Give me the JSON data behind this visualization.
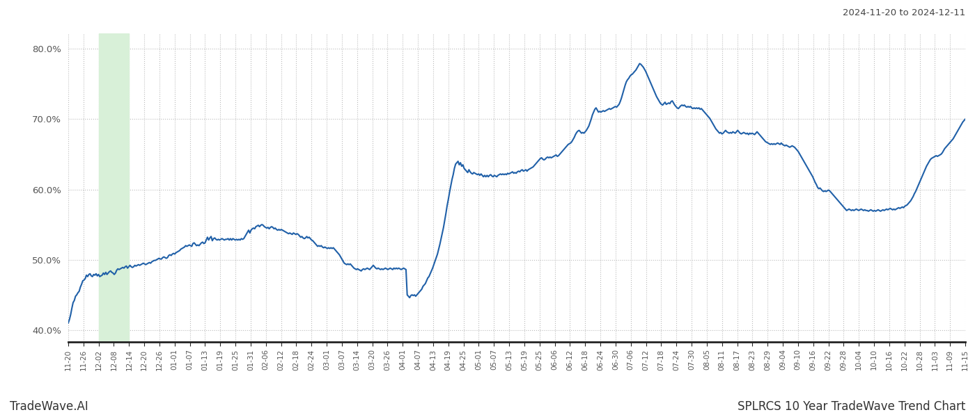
{
  "title_right": "2024-11-20 to 2024-12-11",
  "footer_left": "TradeWave.AI",
  "footer_right": "SPLRCS 10 Year TradeWave Trend Chart",
  "ylim": [
    0.383,
    0.822
  ],
  "yticks": [
    0.4,
    0.5,
    0.6,
    0.7,
    0.8
  ],
  "line_color": "#2060a8",
  "line_width": 1.5,
  "highlight_color": "#d8f0d8",
  "highlight_xstart_label": "12-02",
  "highlight_xend_label": "12-14",
  "background_color": "#ffffff",
  "grid_color": "#bbbbbb",
  "grid_style": ":",
  "x_labels": [
    "11-20",
    "11-26",
    "12-02",
    "12-08",
    "12-14",
    "12-20",
    "12-26",
    "01-01",
    "01-07",
    "01-13",
    "01-19",
    "01-25",
    "01-31",
    "02-06",
    "02-12",
    "02-18",
    "02-24",
    "03-01",
    "03-07",
    "03-14",
    "03-20",
    "03-26",
    "04-01",
    "04-07",
    "04-13",
    "04-19",
    "04-25",
    "05-01",
    "05-07",
    "05-13",
    "05-19",
    "05-25",
    "06-06",
    "06-12",
    "06-18",
    "06-24",
    "06-30",
    "07-06",
    "07-12",
    "07-18",
    "07-24",
    "07-30",
    "08-05",
    "08-11",
    "08-17",
    "08-23",
    "08-29",
    "09-04",
    "09-10",
    "09-16",
    "09-22",
    "09-28",
    "10-04",
    "10-10",
    "10-16",
    "10-22",
    "10-28",
    "11-03",
    "11-09",
    "11-15"
  ],
  "y_values": [
    0.41,
    0.415,
    0.422,
    0.431,
    0.439,
    0.442,
    0.448,
    0.45,
    0.453,
    0.455,
    0.461,
    0.465,
    0.47,
    0.471,
    0.473,
    0.478,
    0.476,
    0.479,
    0.48,
    0.477,
    0.476,
    0.479,
    0.478,
    0.48,
    0.477,
    0.479,
    0.476,
    0.477,
    0.478,
    0.481,
    0.479,
    0.482,
    0.479,
    0.481,
    0.483,
    0.484,
    0.482,
    0.481,
    0.479,
    0.481,
    0.485,
    0.487,
    0.486,
    0.487,
    0.488,
    0.489,
    0.488,
    0.49,
    0.491,
    0.488,
    0.49,
    0.492,
    0.49,
    0.489,
    0.49,
    0.492,
    0.491,
    0.492,
    0.493,
    0.492,
    0.493,
    0.494,
    0.495,
    0.494,
    0.493,
    0.494,
    0.495,
    0.496,
    0.495,
    0.497,
    0.498,
    0.499,
    0.499,
    0.5,
    0.501,
    0.502,
    0.501,
    0.501,
    0.503,
    0.504,
    0.503,
    0.502,
    0.503,
    0.506,
    0.507,
    0.506,
    0.508,
    0.509,
    0.508,
    0.51,
    0.511,
    0.512,
    0.513,
    0.515,
    0.516,
    0.517,
    0.518,
    0.52,
    0.519,
    0.52,
    0.521,
    0.52,
    0.519,
    0.523,
    0.524,
    0.522,
    0.52,
    0.521,
    0.52,
    0.522,
    0.524,
    0.525,
    0.523,
    0.524,
    0.528,
    0.532,
    0.528,
    0.531,
    0.533,
    0.527,
    0.53,
    0.531,
    0.529,
    0.528,
    0.529,
    0.528,
    0.529,
    0.53,
    0.529,
    0.528,
    0.529,
    0.529,
    0.53,
    0.528,
    0.53,
    0.528,
    0.53,
    0.529,
    0.528,
    0.529,
    0.528,
    0.529,
    0.528,
    0.53,
    0.529,
    0.53,
    0.533,
    0.536,
    0.539,
    0.542,
    0.538,
    0.542,
    0.544,
    0.545,
    0.544,
    0.547,
    0.548,
    0.549,
    0.547,
    0.549,
    0.55,
    0.549,
    0.547,
    0.546,
    0.545,
    0.546,
    0.544,
    0.546,
    0.547,
    0.546,
    0.544,
    0.545,
    0.543,
    0.542,
    0.543,
    0.542,
    0.543,
    0.542,
    0.541,
    0.54,
    0.539,
    0.538,
    0.537,
    0.538,
    0.537,
    0.536,
    0.538,
    0.537,
    0.536,
    0.537,
    0.536,
    0.534,
    0.532,
    0.533,
    0.531,
    0.53,
    0.531,
    0.533,
    0.531,
    0.532,
    0.53,
    0.528,
    0.527,
    0.525,
    0.523,
    0.521,
    0.519,
    0.52,
    0.519,
    0.52,
    0.518,
    0.517,
    0.518,
    0.517,
    0.516,
    0.517,
    0.516,
    0.517,
    0.516,
    0.517,
    0.515,
    0.513,
    0.511,
    0.509,
    0.507,
    0.504,
    0.501,
    0.498,
    0.495,
    0.494,
    0.493,
    0.494,
    0.493,
    0.494,
    0.492,
    0.49,
    0.488,
    0.487,
    0.486,
    0.487,
    0.486,
    0.485,
    0.484,
    0.486,
    0.487,
    0.486,
    0.487,
    0.488,
    0.487,
    0.486,
    0.488,
    0.49,
    0.492,
    0.49,
    0.488,
    0.487,
    0.488,
    0.487,
    0.486,
    0.487,
    0.486,
    0.487,
    0.488,
    0.487,
    0.486,
    0.487,
    0.488,
    0.487,
    0.486,
    0.488,
    0.487,
    0.488,
    0.487,
    0.488,
    0.487,
    0.486,
    0.487,
    0.488,
    0.487,
    0.486,
    0.45,
    0.448,
    0.446,
    0.449,
    0.45,
    0.449,
    0.45,
    0.448,
    0.45,
    0.452,
    0.454,
    0.456,
    0.458,
    0.462,
    0.464,
    0.466,
    0.47,
    0.474,
    0.476,
    0.48,
    0.484,
    0.488,
    0.493,
    0.498,
    0.503,
    0.508,
    0.515,
    0.522,
    0.53,
    0.538,
    0.546,
    0.556,
    0.566,
    0.577,
    0.586,
    0.596,
    0.605,
    0.614,
    0.621,
    0.63,
    0.636,
    0.638,
    0.64,
    0.635,
    0.638,
    0.633,
    0.635,
    0.63,
    0.628,
    0.626,
    0.624,
    0.628,
    0.625,
    0.623,
    0.622,
    0.624,
    0.623,
    0.622,
    0.621,
    0.622,
    0.62,
    0.622,
    0.62,
    0.618,
    0.62,
    0.618,
    0.62,
    0.618,
    0.62,
    0.621,
    0.619,
    0.618,
    0.62,
    0.619,
    0.618,
    0.62,
    0.621,
    0.622,
    0.621,
    0.622,
    0.621,
    0.622,
    0.621,
    0.623,
    0.622,
    0.623,
    0.624,
    0.625,
    0.623,
    0.624,
    0.623,
    0.625,
    0.626,
    0.625,
    0.627,
    0.628,
    0.626,
    0.627,
    0.628,
    0.626,
    0.628,
    0.629,
    0.63,
    0.631,
    0.632,
    0.634,
    0.636,
    0.638,
    0.64,
    0.642,
    0.644,
    0.645,
    0.643,
    0.642,
    0.643,
    0.645,
    0.646,
    0.645,
    0.646,
    0.645,
    0.646,
    0.647,
    0.648,
    0.649,
    0.647,
    0.648,
    0.65,
    0.652,
    0.654,
    0.656,
    0.658,
    0.66,
    0.662,
    0.664,
    0.665,
    0.666,
    0.668,
    0.671,
    0.674,
    0.678,
    0.681,
    0.683,
    0.684,
    0.682,
    0.68,
    0.681,
    0.68,
    0.682,
    0.684,
    0.687,
    0.69,
    0.695,
    0.7,
    0.706,
    0.71,
    0.714,
    0.716,
    0.713,
    0.71,
    0.711,
    0.71,
    0.711,
    0.712,
    0.711,
    0.712,
    0.713,
    0.714,
    0.715,
    0.714,
    0.715,
    0.716,
    0.717,
    0.718,
    0.717,
    0.719,
    0.721,
    0.725,
    0.73,
    0.736,
    0.742,
    0.748,
    0.753,
    0.756,
    0.758,
    0.761,
    0.763,
    0.764,
    0.766,
    0.768,
    0.77,
    0.773,
    0.776,
    0.779,
    0.778,
    0.776,
    0.774,
    0.771,
    0.768,
    0.764,
    0.76,
    0.756,
    0.752,
    0.748,
    0.744,
    0.74,
    0.736,
    0.732,
    0.729,
    0.726,
    0.723,
    0.721,
    0.72,
    0.722,
    0.724,
    0.721,
    0.722,
    0.723,
    0.722,
    0.725,
    0.726,
    0.723,
    0.72,
    0.718,
    0.716,
    0.715,
    0.717,
    0.719,
    0.72,
    0.719,
    0.72,
    0.718,
    0.717,
    0.718,
    0.717,
    0.718,
    0.716,
    0.715,
    0.716,
    0.715,
    0.716,
    0.715,
    0.716,
    0.714,
    0.715,
    0.713,
    0.711,
    0.709,
    0.707,
    0.705,
    0.703,
    0.701,
    0.698,
    0.695,
    0.692,
    0.689,
    0.686,
    0.684,
    0.682,
    0.68,
    0.681,
    0.679,
    0.68,
    0.682,
    0.684,
    0.682,
    0.681,
    0.68,
    0.681,
    0.68,
    0.682,
    0.681,
    0.68,
    0.682,
    0.684,
    0.682,
    0.68,
    0.679,
    0.68,
    0.681,
    0.68,
    0.679,
    0.68,
    0.678,
    0.68,
    0.679,
    0.68,
    0.679,
    0.678,
    0.68,
    0.682,
    0.68,
    0.678,
    0.676,
    0.674,
    0.672,
    0.67,
    0.668,
    0.667,
    0.666,
    0.665,
    0.664,
    0.665,
    0.664,
    0.665,
    0.664,
    0.665,
    0.666,
    0.665,
    0.664,
    0.666,
    0.664,
    0.663,
    0.662,
    0.663,
    0.662,
    0.661,
    0.66,
    0.661,
    0.662,
    0.661,
    0.66,
    0.658,
    0.656,
    0.654,
    0.651,
    0.648,
    0.645,
    0.642,
    0.639,
    0.636,
    0.633,
    0.63,
    0.627,
    0.624,
    0.621,
    0.618,
    0.614,
    0.61,
    0.607,
    0.603,
    0.601,
    0.602,
    0.6,
    0.598,
    0.597,
    0.598,
    0.597,
    0.598,
    0.599,
    0.598,
    0.596,
    0.594,
    0.592,
    0.59,
    0.588,
    0.586,
    0.584,
    0.582,
    0.58,
    0.578,
    0.576,
    0.574,
    0.572,
    0.57,
    0.571,
    0.572,
    0.571,
    0.57,
    0.571,
    0.57,
    0.571,
    0.572,
    0.571,
    0.57,
    0.571,
    0.572,
    0.571,
    0.57,
    0.571,
    0.57,
    0.57,
    0.569,
    0.57,
    0.571,
    0.57,
    0.569,
    0.57,
    0.569,
    0.57,
    0.571,
    0.57,
    0.569,
    0.57,
    0.571,
    0.57,
    0.571,
    0.572,
    0.571,
    0.572,
    0.573,
    0.572,
    0.571,
    0.572,
    0.571,
    0.572,
    0.573,
    0.574,
    0.573,
    0.574,
    0.575,
    0.574,
    0.576,
    0.577,
    0.578,
    0.58,
    0.582,
    0.584,
    0.587,
    0.59,
    0.594,
    0.597,
    0.601,
    0.605,
    0.609,
    0.613,
    0.617,
    0.621,
    0.625,
    0.629,
    0.633,
    0.636,
    0.639,
    0.642,
    0.644,
    0.645,
    0.646,
    0.647,
    0.648,
    0.647,
    0.648,
    0.649,
    0.65,
    0.652,
    0.655,
    0.658,
    0.66,
    0.662,
    0.664,
    0.666,
    0.668,
    0.67,
    0.672,
    0.675,
    0.678,
    0.681,
    0.684,
    0.687,
    0.69,
    0.693,
    0.696,
    0.698,
    0.7
  ]
}
